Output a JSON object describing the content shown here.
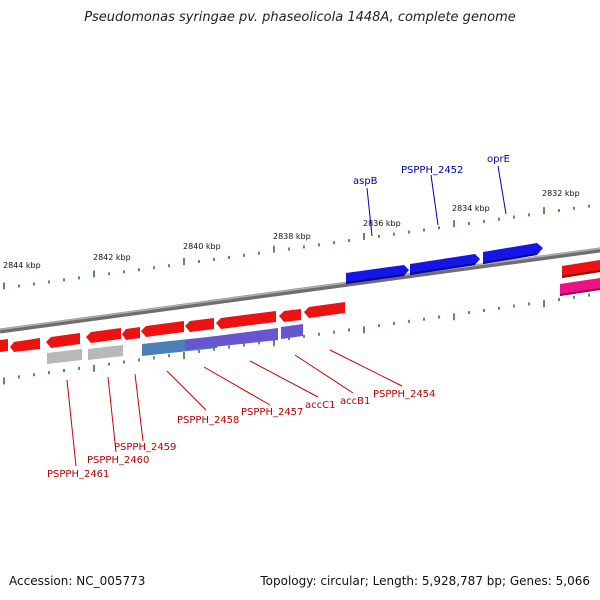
{
  "title": "Pseudomonas syringae pv. phaseolicola 1448A, complete genome",
  "footer": {
    "accession": "Accession: NC_005773",
    "summary": "Topology: circular; Length: 5,928,787 bp; Genes: 5,066"
  },
  "colors": {
    "backbone": "#8a8a8a",
    "forward_gene": "#ee1111",
    "reverse_gene": "#1111ee",
    "pink_gene": "#ee1188",
    "gray_gene": "#b8b8b8",
    "steel_gene": "#4a7fb8",
    "purple_gene": "#6a55d0",
    "tick": "#2a7a2a",
    "top_label": "#0000aa",
    "bottom_label": "#bb0000"
  },
  "scale_labels": [
    "2844 kbp",
    "2842 kbp",
    "2840 kbp",
    "2838 kbp",
    "2836 kbp",
    "2834 kbp",
    "2832 kbp"
  ],
  "gene_labels_top": [
    "aspB",
    "PSPPH_2452",
    "oprE"
  ],
  "gene_labels_bottom": [
    "PSPPH_2461",
    "PSPPH_2460",
    "PSPPH_2459",
    "PSPPH_2458",
    "PSPPH_2457",
    "accC1",
    "accB1",
    "PSPPH_2454"
  ]
}
